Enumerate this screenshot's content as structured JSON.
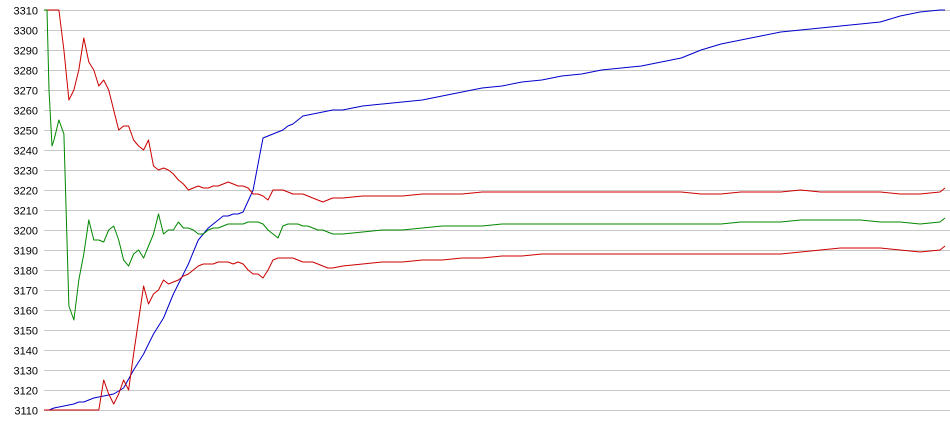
{
  "chart_data": {
    "type": "line",
    "title": "",
    "xlabel": "",
    "ylabel": "",
    "ylim": [
      3110,
      3310
    ],
    "y_ticks": [
      "3310",
      "3300",
      "3290",
      "3280",
      "3270",
      "3260",
      "3250",
      "3240",
      "3230",
      "3220",
      "3210",
      "3200",
      "3190",
      "3180",
      "3170",
      "3160",
      "3150",
      "3140",
      "3130",
      "3120",
      "3110"
    ],
    "grid": true,
    "legend": "none",
    "series": [
      {
        "color": "#0000cc",
        "x": [
          0,
          5,
          10,
          20,
          30,
          35,
          40,
          50,
          60,
          70,
          80,
          90,
          100,
          110,
          120,
          130,
          135,
          140,
          145,
          150,
          155,
          160,
          165,
          170,
          175,
          180,
          185,
          190,
          195,
          200,
          210,
          220,
          230,
          240,
          245,
          250,
          255,
          260,
          280,
          290,
          300,
          310,
          320,
          340,
          360,
          380,
          400,
          420,
          440,
          460,
          480,
          500,
          520,
          540,
          560,
          580,
          600,
          620,
          640,
          660,
          680,
          700,
          720,
          740,
          760,
          780,
          800,
          820,
          840,
          860,
          880,
          900,
          905
        ],
        "values": [
          3110,
          3110,
          3111,
          3112,
          3113,
          3114,
          3114,
          3116,
          3117,
          3118,
          3121,
          3130,
          3138,
          3148,
          3156,
          3168,
          3173,
          3178,
          3183,
          3189,
          3195,
          3198,
          3201,
          3203,
          3205,
          3207,
          3207,
          3208,
          3208,
          3209,
          3220,
          3246,
          3248,
          3250,
          3252,
          3253,
          3255,
          3257,
          3259,
          3260,
          3260,
          3261,
          3262,
          3263,
          3264,
          3265,
          3267,
          3269,
          3271,
          3272,
          3274,
          3275,
          3277,
          3278,
          3280,
          3281,
          3282,
          3284,
          3286,
          3290,
          3293,
          3295,
          3297,
          3299,
          3300,
          3301,
          3302,
          3303,
          3304,
          3307,
          3309,
          3310,
          3310
        ]
      },
      {
        "color": "#cc0000",
        "x": [
          0,
          5,
          10,
          15,
          20,
          25,
          30,
          35,
          40,
          45,
          50,
          55,
          60,
          65,
          70,
          75,
          80,
          85,
          90,
          95,
          100,
          105,
          110,
          115,
          120,
          125,
          130,
          135,
          140,
          145,
          150,
          155,
          160,
          165,
          170,
          175,
          180,
          185,
          190,
          195,
          200,
          205,
          210,
          215,
          220,
          225,
          230,
          235,
          240,
          245,
          250,
          255,
          260,
          265,
          270,
          275,
          280,
          285,
          290,
          300,
          320,
          340,
          360,
          380,
          400,
          420,
          440,
          460,
          480,
          500,
          520,
          540,
          560,
          580,
          600,
          620,
          640,
          660,
          680,
          700,
          720,
          740,
          760,
          780,
          800,
          820,
          840,
          860,
          880,
          900,
          905
        ],
        "values": [
          3310,
          3310,
          3310,
          3310,
          3290,
          3265,
          3270,
          3280,
          3296,
          3284,
          3280,
          3272,
          3275,
          3270,
          3260,
          3250,
          3252,
          3252,
          3245,
          3242,
          3240,
          3245,
          3232,
          3230,
          3231,
          3230,
          3228,
          3225,
          3223,
          3220,
          3221,
          3222,
          3221,
          3221,
          3222,
          3222,
          3223,
          3224,
          3223,
          3222,
          3222,
          3221,
          3218,
          3218,
          3217,
          3215,
          3220,
          3220,
          3220,
          3219,
          3218,
          3218,
          3218,
          3217,
          3216,
          3215,
          3214,
          3215,
          3216,
          3216,
          3217,
          3217,
          3217,
          3218,
          3218,
          3218,
          3219,
          3219,
          3219,
          3219,
          3219,
          3219,
          3219,
          3219,
          3219,
          3219,
          3219,
          3218,
          3218,
          3219,
          3219,
          3219,
          3220,
          3219,
          3219,
          3219,
          3219,
          3218,
          3218,
          3219,
          3221
        ]
      },
      {
        "color": "#008800",
        "x": [
          0,
          3,
          5,
          8,
          10,
          15,
          20,
          25,
          30,
          35,
          40,
          45,
          50,
          55,
          60,
          65,
          70,
          75,
          80,
          85,
          90,
          95,
          100,
          105,
          110,
          115,
          120,
          125,
          130,
          135,
          140,
          145,
          150,
          155,
          160,
          165,
          170,
          175,
          180,
          185,
          190,
          195,
          200,
          205,
          210,
          215,
          220,
          225,
          230,
          235,
          240,
          245,
          250,
          255,
          260,
          265,
          270,
          275,
          280,
          285,
          290,
          300,
          320,
          340,
          360,
          380,
          400,
          420,
          440,
          460,
          480,
          500,
          520,
          540,
          560,
          580,
          600,
          620,
          640,
          660,
          680,
          700,
          720,
          740,
          760,
          780,
          800,
          820,
          840,
          860,
          880,
          900,
          905
        ],
        "values": [
          3310,
          3310,
          3270,
          3242,
          3245,
          3255,
          3248,
          3162,
          3155,
          3175,
          3188,
          3205,
          3195,
          3195,
          3194,
          3200,
          3202,
          3195,
          3185,
          3182,
          3188,
          3190,
          3186,
          3192,
          3198,
          3208,
          3198,
          3200,
          3200,
          3204,
          3201,
          3201,
          3200,
          3198,
          3198,
          3200,
          3201,
          3201,
          3202,
          3203,
          3203,
          3203,
          3203,
          3204,
          3204,
          3204,
          3203,
          3200,
          3198,
          3196,
          3202,
          3203,
          3203,
          3203,
          3202,
          3202,
          3201,
          3200,
          3200,
          3199,
          3198,
          3198,
          3199,
          3200,
          3200,
          3201,
          3202,
          3202,
          3202,
          3203,
          3203,
          3203,
          3203,
          3203,
          3203,
          3203,
          3203,
          3203,
          3203,
          3203,
          3203,
          3204,
          3204,
          3204,
          3205,
          3205,
          3205,
          3205,
          3204,
          3204,
          3203,
          3204,
          3206
        ]
      },
      {
        "color": "#cc0000",
        "x": [
          0,
          5,
          10,
          15,
          20,
          25,
          30,
          35,
          40,
          45,
          50,
          55,
          60,
          65,
          70,
          75,
          80,
          85,
          90,
          95,
          100,
          105,
          110,
          115,
          120,
          125,
          130,
          135,
          140,
          145,
          150,
          155,
          160,
          165,
          170,
          175,
          180,
          185,
          190,
          195,
          200,
          205,
          210,
          215,
          220,
          225,
          230,
          235,
          240,
          245,
          250,
          255,
          260,
          265,
          270,
          275,
          280,
          285,
          290,
          300,
          320,
          340,
          360,
          380,
          400,
          420,
          440,
          460,
          480,
          500,
          520,
          540,
          560,
          580,
          600,
          620,
          640,
          660,
          680,
          700,
          720,
          740,
          760,
          780,
          800,
          820,
          840,
          860,
          880,
          900,
          905
        ],
        "values": [
          3110,
          3110,
          3110,
          3110,
          3110,
          3110,
          3110,
          3110,
          3110,
          3110,
          3110,
          3110,
          3125,
          3118,
          3113,
          3118,
          3125,
          3120,
          3138,
          3155,
          3172,
          3163,
          3168,
          3170,
          3175,
          3173,
          3174,
          3175,
          3177,
          3178,
          3180,
          3182,
          3183,
          3183,
          3183,
          3184,
          3184,
          3184,
          3183,
          3184,
          3183,
          3180,
          3178,
          3178,
          3176,
          3180,
          3185,
          3186,
          3186,
          3186,
          3186,
          3185,
          3184,
          3184,
          3184,
          3183,
          3182,
          3181,
          3181,
          3182,
          3183,
          3184,
          3184,
          3185,
          3185,
          3186,
          3186,
          3187,
          3187,
          3188,
          3188,
          3188,
          3188,
          3188,
          3188,
          3188,
          3188,
          3188,
          3188,
          3188,
          3188,
          3188,
          3189,
          3190,
          3191,
          3191,
          3191,
          3190,
          3189,
          3190,
          3192
        ]
      }
    ]
  }
}
